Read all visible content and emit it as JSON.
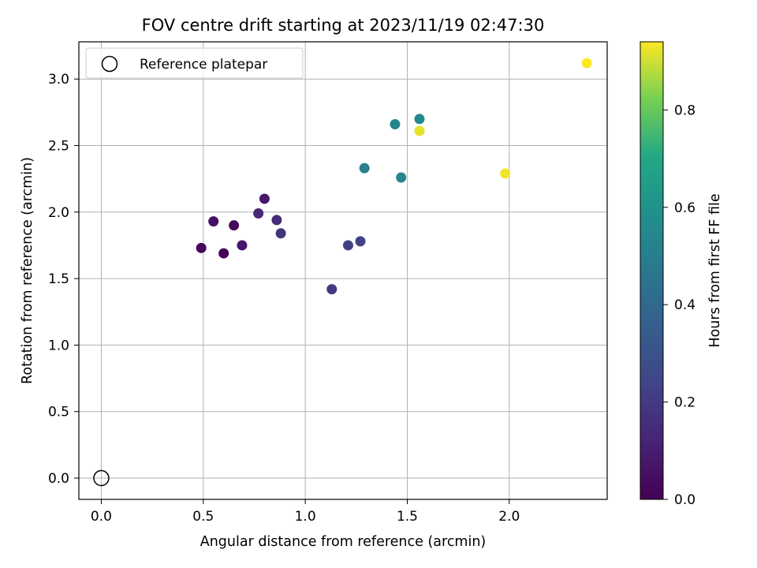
{
  "chart_data": {
    "type": "scatter",
    "title": "FOV centre drift starting at 2023/11/19 02:47:30",
    "xlabel": "Angular distance from reference (arcmin)",
    "ylabel": "Rotation from reference (arcmin)",
    "xlim": [
      -0.11,
      2.48
    ],
    "ylim": [
      -0.16,
      3.28
    ],
    "xticks": [
      0.0,
      0.5,
      1.0,
      1.5,
      2.0
    ],
    "xtick_labels": [
      "0.0",
      "0.5",
      "1.0",
      "1.5",
      "2.0"
    ],
    "yticks": [
      0.0,
      0.5,
      1.0,
      1.5,
      2.0,
      2.5,
      3.0
    ],
    "ytick_labels": [
      "0.0",
      "0.5",
      "1.0",
      "1.5",
      "2.0",
      "2.5",
      "3.0"
    ],
    "grid": true,
    "colormap": "viridis",
    "series": [
      {
        "name": "Reference platepar",
        "marker": "open-circle",
        "points": [
          {
            "x": 0.0,
            "y": 0.0
          }
        ]
      },
      {
        "points": [
          {
            "x": 0.49,
            "y": 1.73,
            "c": 0.02
          },
          {
            "x": 0.6,
            "y": 1.69,
            "c": 0.01
          },
          {
            "x": 0.65,
            "y": 1.9,
            "c": 0.03
          },
          {
            "x": 0.55,
            "y": 1.93,
            "c": 0.05
          },
          {
            "x": 0.69,
            "y": 1.75,
            "c": 0.07
          },
          {
            "x": 0.8,
            "y": 2.1,
            "c": 0.08
          },
          {
            "x": 0.77,
            "y": 1.99,
            "c": 0.13
          },
          {
            "x": 0.86,
            "y": 1.94,
            "c": 0.15
          },
          {
            "x": 0.88,
            "y": 1.84,
            "c": 0.18
          },
          {
            "x": 1.13,
            "y": 1.42,
            "c": 0.2
          },
          {
            "x": 1.21,
            "y": 1.75,
            "c": 0.22
          },
          {
            "x": 1.27,
            "y": 1.78,
            "c": 0.23
          },
          {
            "x": 1.29,
            "y": 2.33,
            "c": 0.52
          },
          {
            "x": 1.44,
            "y": 2.66,
            "c": 0.53
          },
          {
            "x": 1.47,
            "y": 2.26,
            "c": 0.54
          },
          {
            "x": 1.56,
            "y": 2.7,
            "c": 0.55
          },
          {
            "x": 1.56,
            "y": 2.61,
            "c": 0.92
          },
          {
            "x": 1.98,
            "y": 2.29,
            "c": 0.93
          },
          {
            "x": 2.38,
            "y": 3.12,
            "c": 0.94
          }
        ]
      }
    ],
    "colorbar": {
      "label": "Hours from first FF file",
      "range": [
        0.0,
        0.94
      ],
      "ticks": [
        0.0,
        0.2,
        0.4,
        0.6,
        0.8
      ],
      "tick_labels": [
        "0.0",
        "0.2",
        "0.4",
        "0.6",
        "0.8"
      ]
    },
    "legend": {
      "position": "top-left",
      "entries": [
        "Reference platepar"
      ]
    }
  }
}
